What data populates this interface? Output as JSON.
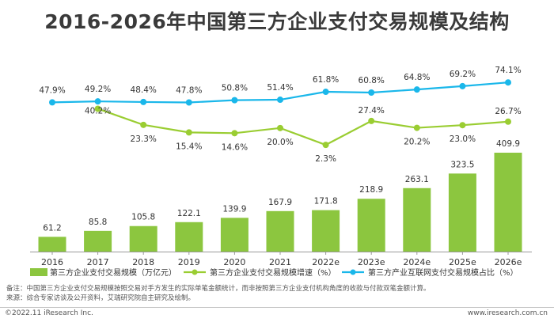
{
  "chart_data": {
    "type": "bar+line",
    "title": "2016-2026年中国第三方企业支付交易规模及结构",
    "categories": [
      "2016",
      "2017",
      "2018",
      "2019",
      "2020",
      "2021",
      "2022e",
      "2023e",
      "2024e",
      "2025e",
      "2026e"
    ],
    "series": [
      {
        "name": "第三方企业支付交易规模（万亿元）",
        "type": "bar",
        "color": "#8cc63f",
        "values": [
          61.2,
          85.8,
          105.8,
          122.1,
          139.9,
          167.9,
          171.8,
          218.9,
          263.1,
          323.5,
          409.9
        ],
        "labels": [
          "61.2",
          "85.8",
          "105.8",
          "122.1",
          "139.9",
          "167.9",
          "171.8",
          "218.9",
          "263.1",
          "323.5",
          "409.9"
        ]
      },
      {
        "name": "第三方企业支付交易规模增速（%）",
        "type": "line",
        "color": "#9acd32",
        "values": [
          null,
          40.2,
          23.3,
          15.4,
          14.6,
          20.0,
          2.3,
          27.4,
          20.2,
          23.0,
          26.7
        ],
        "labels": [
          "",
          "40.2%",
          "23.3%",
          "15.4%",
          "14.6%",
          "20.0%",
          "2.3%",
          "27.4%",
          "20.2%",
          "23.0%",
          "26.7%"
        ]
      },
      {
        "name": "第三方产业互联网支付交易规模占比（%）",
        "type": "line",
        "color": "#1ab7ea",
        "values": [
          47.9,
          49.2,
          48.4,
          47.8,
          50.8,
          51.4,
          61.8,
          60.8,
          64.8,
          69.2,
          74.1
        ],
        "labels": [
          "47.9%",
          "49.2%",
          "48.4%",
          "47.8%",
          "50.8%",
          "51.4%",
          "61.8%",
          "60.8%",
          "64.8%",
          "69.2%",
          "74.1%"
        ]
      }
    ],
    "legend": [
      "第三方企业支付交易规模（万亿元）",
      "第三方企业支付交易规模增速（%）",
      "第三方产业互联网支付交易规模占比（%）"
    ]
  },
  "notes": {
    "note": "备注：中国第三方企业支付交易规模按照交易对手方发生的实际单笔金额统计，而非按照第三方企业支付机构角度的收款与付款双笔金额计算。",
    "source": "来源：综合专家访谈及公开资料，艾瑞研究院自主研究及绘制。"
  },
  "footer": {
    "left": "©2022.11 iResearch Inc.",
    "right": "www.iresearch.com.cn"
  },
  "colors": {
    "bar": "#8cc63f",
    "growth_line": "#9acd32",
    "share_line": "#1ab7ea",
    "axis": "#999999"
  }
}
